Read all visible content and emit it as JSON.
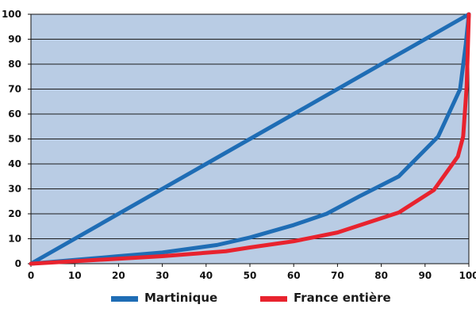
{
  "chart_data": {
    "type": "line",
    "title": "",
    "xlabel": "",
    "ylabel": "",
    "xlim": [
      0,
      100
    ],
    "ylim": [
      0,
      100
    ],
    "x_ticks": [
      0,
      10,
      20,
      30,
      40,
      50,
      60,
      70,
      80,
      90,
      100
    ],
    "y_ticks": [
      0,
      10,
      20,
      30,
      40,
      50,
      60,
      70,
      80,
      90,
      100
    ],
    "grid": "horizontal",
    "legend_position": "bottom",
    "colors": {
      "plot_background": "#b9cce4",
      "grid": "#1c1c1c",
      "axis": "#111111"
    },
    "series": [
      {
        "name": "",
        "color": "#1f6db5",
        "points": [
          [
            0,
            0
          ],
          [
            100,
            100
          ]
        ]
      },
      {
        "name": "Martinique",
        "color": "#1f6db5",
        "points": [
          [
            0,
            0
          ],
          [
            10,
            1.5
          ],
          [
            20,
            3
          ],
          [
            30,
            4.5
          ],
          [
            42.5,
            7.5
          ],
          [
            50,
            10.5
          ],
          [
            55,
            13
          ],
          [
            60,
            15.5
          ],
          [
            67.5,
            20
          ],
          [
            75,
            27
          ],
          [
            84,
            35
          ],
          [
            93,
            51
          ],
          [
            98,
            70
          ],
          [
            99.3,
            88
          ],
          [
            100,
            100
          ]
        ]
      },
      {
        "name": "France entière",
        "color": "#e8232e",
        "points": [
          [
            0,
            0
          ],
          [
            10,
            1
          ],
          [
            20,
            2
          ],
          [
            30,
            3
          ],
          [
            44.5,
            5
          ],
          [
            50,
            6.5
          ],
          [
            60,
            9
          ],
          [
            70,
            12.5
          ],
          [
            84,
            20.5
          ],
          [
            92,
            29.5
          ],
          [
            97.5,
            43
          ],
          [
            98.7,
            51
          ],
          [
            99.5,
            71
          ],
          [
            100,
            100
          ]
        ]
      }
    ]
  }
}
